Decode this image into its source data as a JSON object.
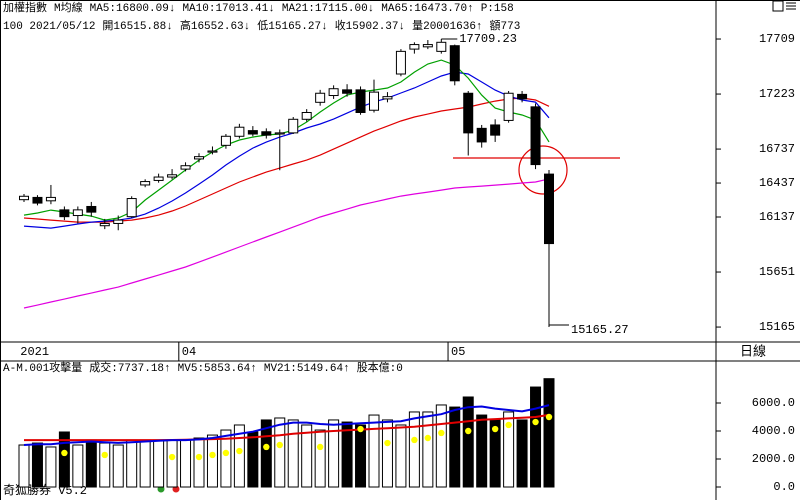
{
  "period_label": "日線",
  "footer": "奇狐勝券 v5.2",
  "chart_data": [
    {
      "type": "candlestick",
      "header": [
        [
          {
            "text": "加權指數",
            "color": "#000000"
          },
          {
            "text": "M均線",
            "color": "#000000"
          },
          {
            "text": "MA5:16800.09↓",
            "color": "#00a000"
          },
          {
            "text": "MA10:17013.41↓",
            "color": "#0000e0"
          },
          {
            "text": "MA21:17115.00↓",
            "color": "#e00000"
          },
          {
            "text": "MA65:16473.70↑",
            "color": "#e000e0"
          },
          {
            "text": "P:158",
            "color": "#e000e0"
          }
        ],
        [
          {
            "text": "100 2021/05/12",
            "color": "#000000"
          },
          {
            "text": "開16515.88↓",
            "color": "#000000"
          },
          {
            "text": "高16552.63↓",
            "color": "#000000"
          },
          {
            "text": "低15165.27↓",
            "color": "#000000"
          },
          {
            "text": "收15902.37↓",
            "color": "#000000"
          },
          {
            "text": "量20001636↑",
            "color": "#000000"
          },
          {
            "text": "額773",
            "color": "#000000"
          }
        ]
      ],
      "categories": [
        "2021",
        null,
        null,
        null,
        null,
        null,
        null,
        null,
        null,
        null,
        null,
        null,
        "04",
        null,
        null,
        null,
        null,
        null,
        null,
        null,
        null,
        null,
        null,
        null,
        null,
        null,
        null,
        null,
        null,
        null,
        null,
        null,
        "05",
        null,
        null,
        null,
        null,
        null,
        null,
        null
      ],
      "open": [
        16290,
        16310,
        16280,
        16200,
        16150,
        16230,
        16060,
        16080,
        16140,
        16420,
        16460,
        16490,
        16560,
        16650,
        16710,
        16770,
        16850,
        16900,
        16890,
        16870,
        16880,
        17000,
        17150,
        17210,
        17260,
        17260,
        17080,
        17180,
        17400,
        17620,
        17640,
        17600,
        17650,
        17230,
        16920,
        16950,
        16990,
        17220,
        17110,
        16515.88
      ],
      "high": [
        16340,
        16330,
        16420,
        16230,
        16230,
        16270,
        16120,
        16150,
        16320,
        16470,
        16520,
        16560,
        16620,
        16700,
        16760,
        16870,
        16960,
        16940,
        16920,
        16910,
        17020,
        17090,
        17260,
        17300,
        17310,
        17290,
        17350,
        17240,
        17620,
        17680,
        17700,
        17709.23,
        17660,
        17250,
        16950,
        17000,
        17250,
        17250,
        17140,
        16552.63
      ],
      "low": [
        16270,
        16240,
        16250,
        16110,
        16080,
        16140,
        16030,
        16020,
        16130,
        16400,
        16440,
        16470,
        16540,
        16620,
        16690,
        16740,
        16830,
        16850,
        16830,
        16550,
        16870,
        16980,
        17120,
        17180,
        17200,
        17040,
        17060,
        17150,
        17380,
        17580,
        17620,
        17580,
        17300,
        16680,
        16750,
        16800,
        16970,
        17150,
        16560,
        15165.27
      ],
      "close": [
        16320,
        16260,
        16310,
        16140,
        16200,
        16180,
        16080,
        16110,
        16300,
        16450,
        16490,
        16510,
        16590,
        16670,
        16720,
        16850,
        16930,
        16870,
        16860,
        16880,
        17000,
        17060,
        17230,
        17270,
        17230,
        17060,
        17240,
        17200,
        17600,
        17660,
        17660,
        17680,
        17340,
        16880,
        16800,
        16860,
        17230,
        17180,
        16600,
        15902.37
      ],
      "overlays": [
        {
          "color": "#e000e0",
          "values": [
            15333,
            15359,
            15386,
            15412,
            15439,
            15465,
            15492,
            15518,
            15554,
            15589,
            15624,
            15660,
            15695,
            15739,
            15783,
            15827,
            15872,
            15916,
            15960,
            16004,
            16048,
            16092,
            16137,
            16172,
            16207,
            16243,
            16269,
            16296,
            16322,
            16340,
            16357,
            16375,
            16393,
            16402,
            16410,
            16419,
            16428,
            16437,
            16446,
            16473.7
          ]
        },
        {
          "color": "#e00000",
          "values": [
            16128,
            16119,
            16110,
            16101,
            16092,
            16092,
            16092,
            16101,
            16110,
            16128,
            16154,
            16190,
            16234,
            16287,
            16340,
            16393,
            16446,
            16490,
            16534,
            16569,
            16605,
            16640,
            16684,
            16737,
            16790,
            16843,
            16896,
            16940,
            16985,
            17020,
            17046,
            17073,
            17091,
            17108,
            17135,
            17161,
            17179,
            17188,
            17170,
            17115.0
          ]
        },
        {
          "color": "#0000e0",
          "values": [
            16057,
            16048,
            16039,
            16057,
            16075,
            16092,
            16101,
            16110,
            16128,
            16163,
            16216,
            16278,
            16349,
            16428,
            16508,
            16596,
            16675,
            16746,
            16799,
            16843,
            16879,
            16923,
            16958,
            17002,
            17055,
            17108,
            17152,
            17188,
            17232,
            17276,
            17329,
            17382,
            17417,
            17400,
            17329,
            17258,
            17205,
            17170,
            17152,
            17013.41
          ]
        },
        {
          "color": "#00a000",
          "values": [
            16154,
            16172,
            16198,
            16181,
            16163,
            16145,
            16110,
            16128,
            16181,
            16287,
            16375,
            16463,
            16552,
            16640,
            16711,
            16773,
            16817,
            16843,
            16861,
            16870,
            16905,
            16976,
            17064,
            17144,
            17214,
            17241,
            17258,
            17276,
            17329,
            17417,
            17488,
            17523,
            17479,
            17364,
            17214,
            17099,
            17064,
            17038,
            16993,
            16800.09
          ]
        }
      ],
      "annotations": {
        "max": "17709.23",
        "min": "15165.27"
      },
      "ylim": [
        15033,
        17877
      ],
      "yticks": [
        17709,
        17223,
        16737,
        16437,
        16137,
        15651,
        15165
      ]
    },
    {
      "type": "bar",
      "header": [
        [
          {
            "text": "A-M.001攻擊量",
            "color": "#000000"
          },
          {
            "text": "成交:7737.18↑",
            "color": "#00a000"
          },
          {
            "text": "MV5:5853.64↑",
            "color": "#0000e0"
          },
          {
            "text": "MV21:5149.64↑",
            "color": "#e00000"
          },
          {
            "text": "股本億:0",
            "color": "#e000e0"
          }
        ]
      ],
      "values": [
        3000,
        3140,
        2860,
        3930,
        3000,
        3360,
        3140,
        3000,
        3360,
        3360,
        3360,
        3360,
        3360,
        3500,
        3710,
        4070,
        4430,
        3930,
        4790,
        4930,
        4790,
        4430,
        4070,
        4790,
        4640,
        4430,
        5140,
        4790,
        4430,
        5360,
        5360,
        5860,
        5710,
        6430,
        5140,
        4790,
        5360,
        4790,
        7140,
        7737.18
      ],
      "lines": [
        {
          "color": "#e00000",
          "values": [
            3350,
            3350,
            3350,
            3350,
            3350,
            3350,
            3350,
            3350,
            3350,
            3350,
            3350,
            3360,
            3380,
            3400,
            3420,
            3450,
            3500,
            3550,
            3620,
            3700,
            3800,
            3880,
            3950,
            4000,
            4050,
            4100,
            4150,
            4200,
            4250,
            4300,
            4400,
            4500,
            4600,
            4700,
            4800,
            4850,
            4900,
            4950,
            5000,
            5149.64
          ]
        },
        {
          "color": "#0000e0",
          "values": [
            3000,
            3050,
            3050,
            3150,
            3200,
            3250,
            3200,
            3150,
            3200,
            3250,
            3300,
            3350,
            3350,
            3400,
            3500,
            3650,
            3800,
            3950,
            4200,
            4450,
            4600,
            4600,
            4500,
            4450,
            4500,
            4550,
            4600,
            4650,
            4700,
            4900,
            5050,
            5200,
            5500,
            5700,
            5750,
            5600,
            5500,
            5400,
            5600,
            5853.64
          ]
        }
      ],
      "dots": {
        "color": "#ffff00",
        "values": [
          null,
          null,
          null,
          2430,
          null,
          null,
          2290,
          null,
          null,
          null,
          null,
          2140,
          null,
          2140,
          2290,
          2430,
          2570,
          null,
          2860,
          3000,
          null,
          null,
          2860,
          null,
          null,
          4140,
          null,
          3140,
          null,
          3360,
          3500,
          3860,
          null,
          4000,
          null,
          4140,
          4430,
          null,
          4640,
          5000
        ]
      },
      "ylim": [
        -571,
        8929
      ],
      "yticks": [
        {
          "value": 6000,
          "label": "6000.0"
        },
        {
          "value": 4000,
          "label": "4000.0"
        },
        {
          "value": 2000,
          "label": "2000.0"
        },
        {
          "value": 0,
          "label": "0.0"
        }
      ]
    }
  ]
}
